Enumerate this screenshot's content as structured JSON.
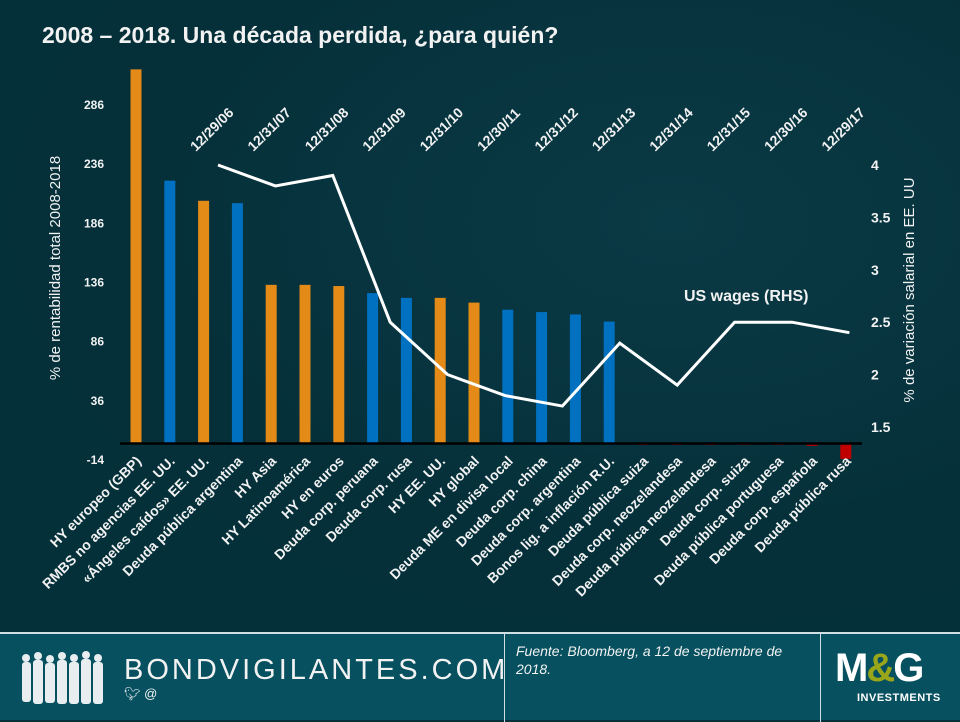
{
  "title": "2008 – 2018. Una década perdida, ¿para quién?",
  "chart_data": {
    "type": "bar",
    "title": "2008 – 2018. Una década perdida, ¿para quién?",
    "ylabel": "% de rentabilidad total 2008-2018",
    "y2label": "% de variación  salarial  en EE. UU",
    "ylim": [
      -14,
      316
    ],
    "yticks": [
      286,
      236,
      186,
      136,
      86,
      36,
      -14
    ],
    "y2lim": [
      1.5,
      4
    ],
    "y2ticks": [
      4,
      3.5,
      3,
      2.5,
      2,
      1.5
    ],
    "grid": false,
    "categories": [
      "HY europeo (GBP)",
      "RMBS no agencias EE. UU.",
      "«Ángeles caídos» EE. UU.",
      "Deuda pública argentina",
      "HY Asia",
      "HY Latinoamérica",
      "HY en euros",
      "Deuda corp. peruana",
      "Deuda corp. rusa",
      "HY EE. UU.",
      "HY global",
      "Deuda ME en divisa local",
      "Deuda corp. china",
      "Deuda corp. argentina",
      "Bonos lig. a inflación R.U.",
      "Deuda pública suiza",
      "Deuda corp. neozelandesa",
      "Deuda pública neozelandesa",
      "Deuda corp. suiza",
      "Deuda pública portuguesa",
      "Deuda corp. española",
      "Deuda pública rusa"
    ],
    "series": [
      {
        "name": "Total return 2008-2018 (%)",
        "type": "bar",
        "axis": "left",
        "values": [
          316,
          222,
          205,
          203,
          134,
          134,
          133,
          127,
          123,
          123,
          119,
          113,
          111,
          109,
          103,
          -1,
          -1,
          -1,
          -1,
          -1,
          -2,
          -13
        ],
        "colors": [
          "orange",
          "blue",
          "orange",
          "blue",
          "orange",
          "orange",
          "orange",
          "blue",
          "blue",
          "orange",
          "orange",
          "blue",
          "blue",
          "blue",
          "blue",
          "red",
          "red",
          "red",
          "red",
          "red",
          "red",
          "red"
        ]
      },
      {
        "name": "US wages (RHS)",
        "type": "line",
        "axis": "right",
        "x": [
          "12/29/06",
          "12/31/07",
          "12/31/08",
          "12/31/09",
          "12/31/10",
          "12/30/11",
          "12/31/12",
          "12/31/13",
          "12/31/14",
          "12/31/15",
          "12/30/16",
          "12/29/17"
        ],
        "values": [
          4.0,
          3.8,
          3.9,
          2.5,
          2.0,
          1.8,
          1.7,
          2.3,
          1.9,
          2.5,
          2.5,
          2.4
        ]
      }
    ],
    "annotations": [
      "US wages (RHS)"
    ],
    "palette": {
      "orange": "#e38a17",
      "blue": "#0070c0",
      "red": "#c00000",
      "line": "#ffffff",
      "axis": "#000000"
    }
  },
  "footer": {
    "brand": "BONDVIGILANTES.COM",
    "social": "@",
    "source": "Fuente: Bloomberg, a 12 de septiembre de 2018.",
    "logo_main_left": "M",
    "logo_amp": "&",
    "logo_main_right": "G",
    "logo_sub": "INVESTMENTS"
  }
}
